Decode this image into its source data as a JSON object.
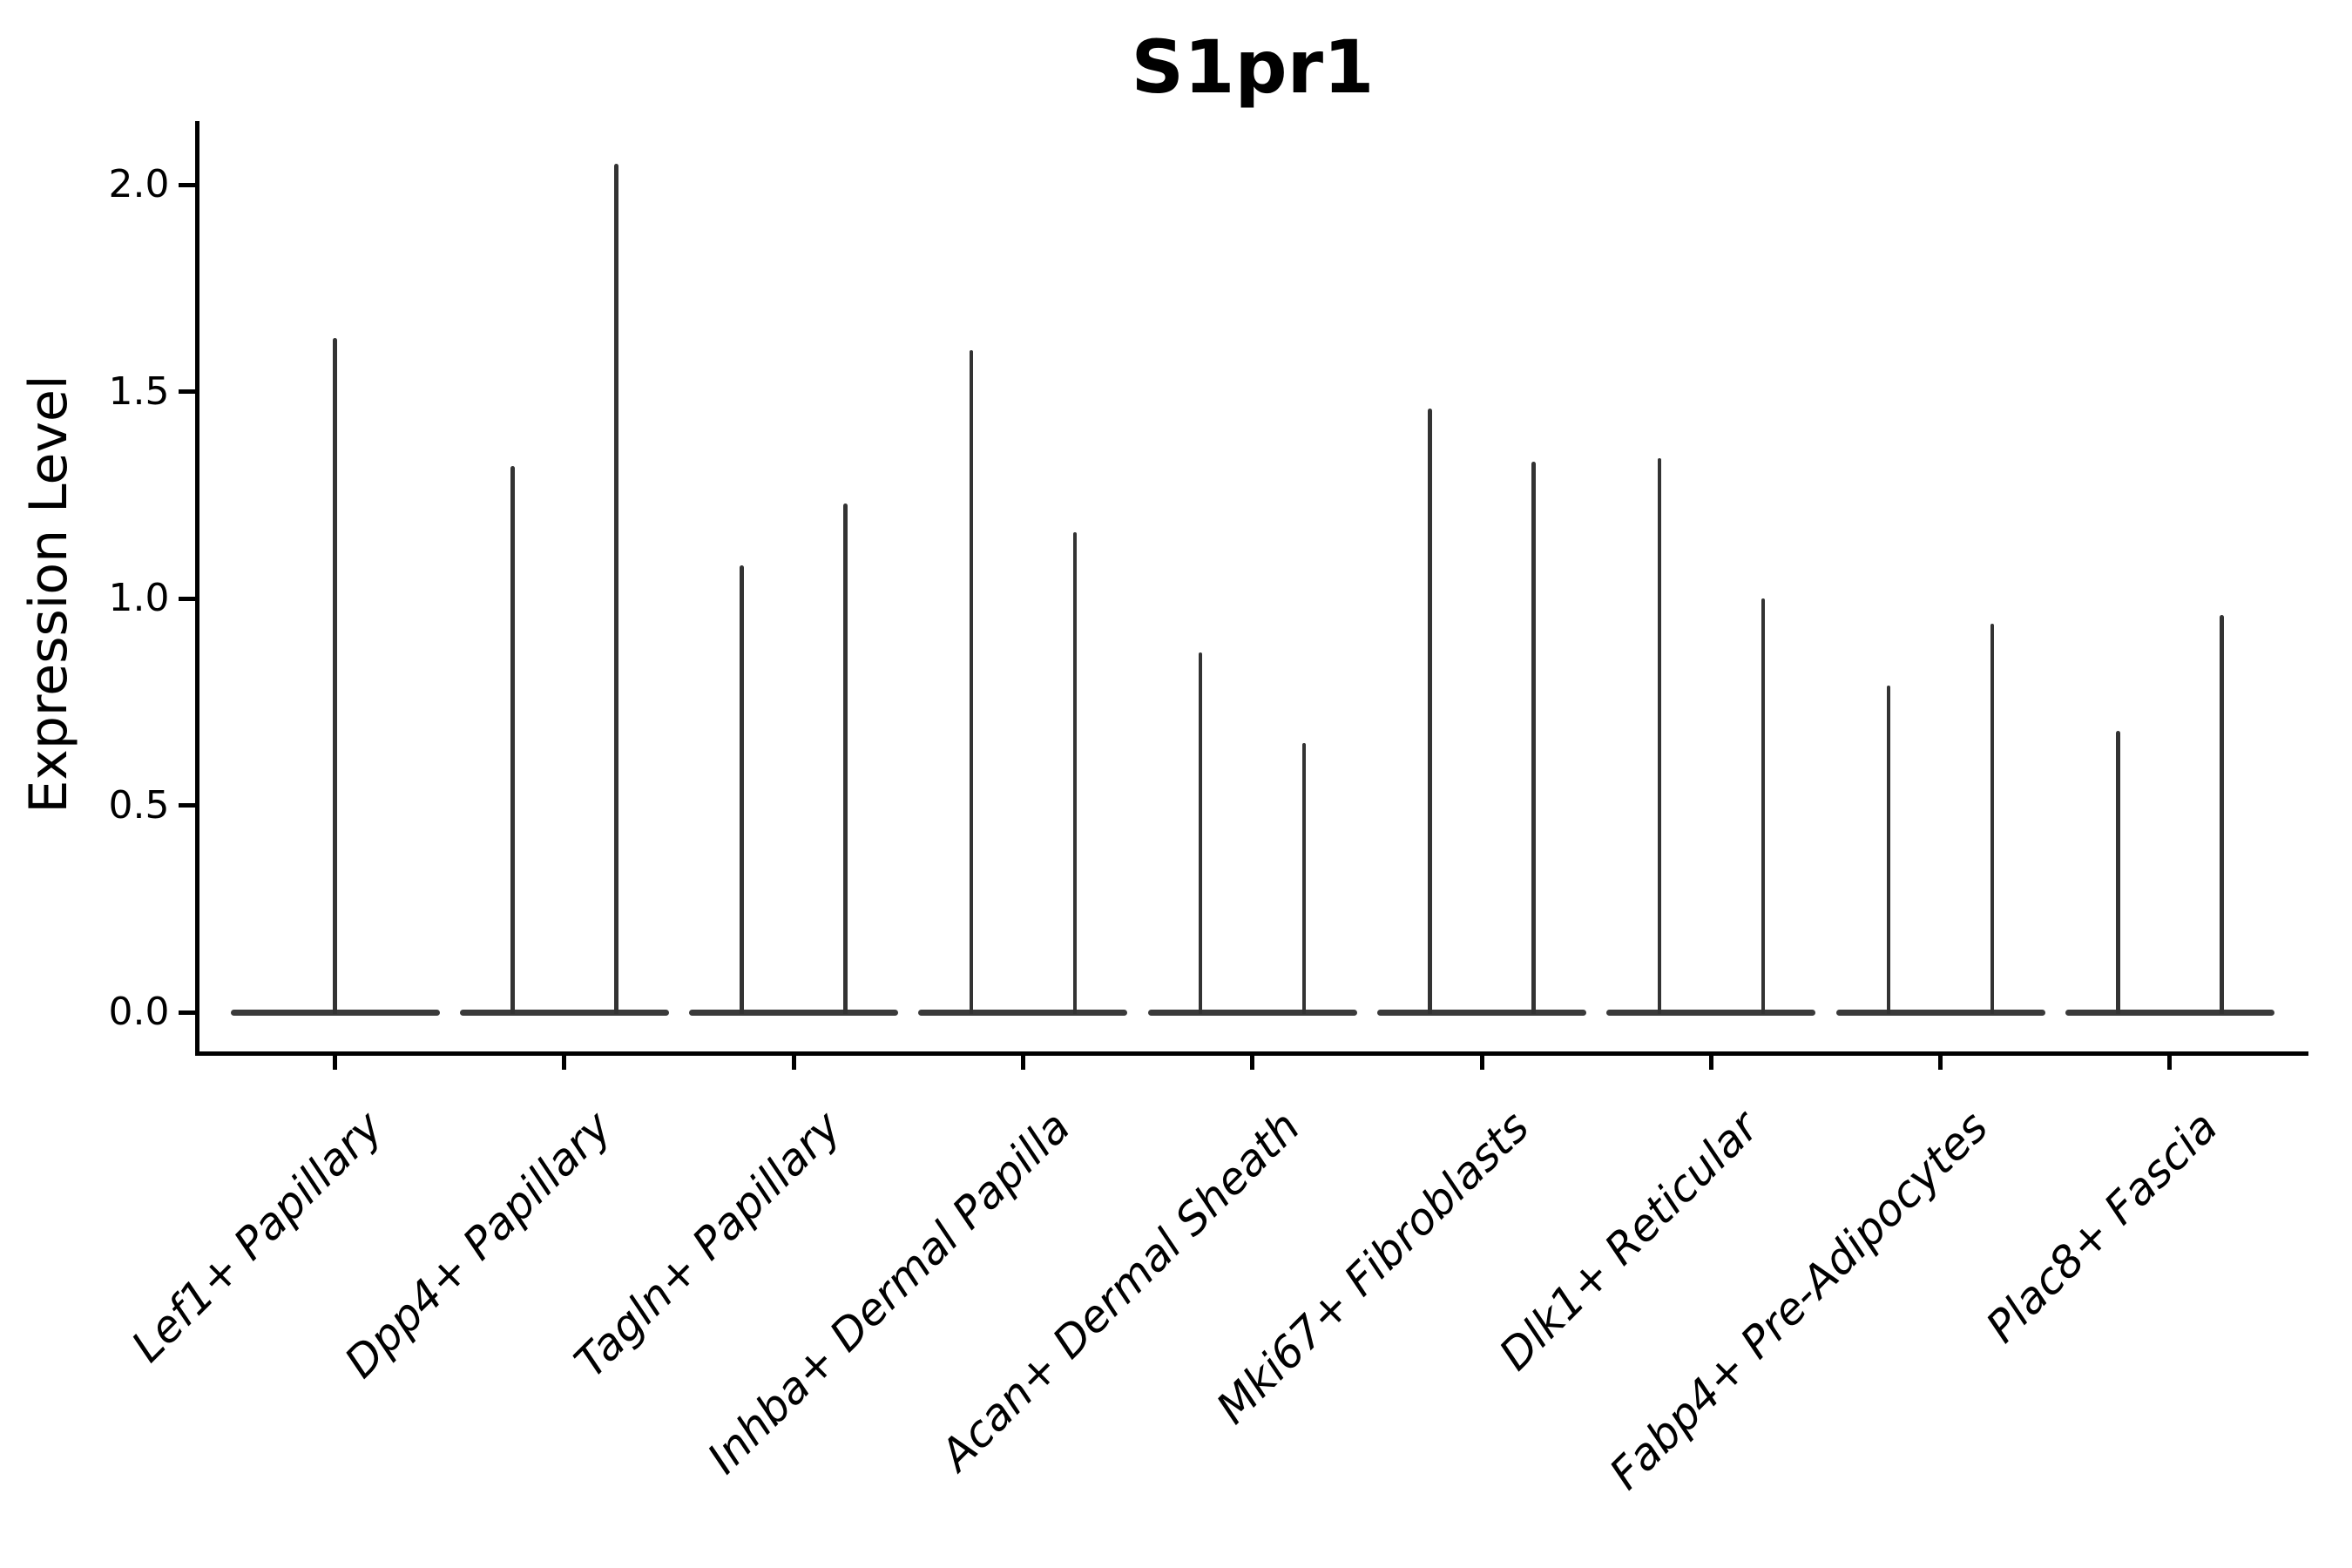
{
  "title": "S1pr1",
  "y_axis": {
    "label": "Expression Level",
    "tick_labels": [
      "0.0",
      "0.5",
      "1.0",
      "1.5",
      "2.0"
    ]
  },
  "x_axis": {
    "label": "",
    "categories": [
      "Lef1+ Papillary",
      "Dpp4+ Papillary",
      "Tagln+ Papillary",
      "Inhba+ Dermal Papilla",
      "Acan+ Dermal Sheath",
      "Mki67+ Fibroblasts",
      "Dlk1+ Reticular",
      "Fabp4+ Pre-Adipocytes",
      "Plac8+ Fascia"
    ]
  },
  "chart_data": {
    "type": "violin",
    "title": "S1pr1",
    "xlabel": "",
    "ylabel": "Expression Level",
    "ylim": [
      -0.1,
      2.12
    ],
    "yticks": [
      0.0,
      0.5,
      1.0,
      1.5,
      2.0
    ],
    "grid": false,
    "legend": "none",
    "style": "flat violin bodies collapsed at 0 expression with thin vertical density spikes reaching the maximum expression value; one centered spike for the first category, two symmetric spikes (left/right sub-violins) for all others",
    "categories": [
      "Lef1+ Papillary",
      "Dpp4+ Papillary",
      "Tagln+ Papillary",
      "Inhba+ Dermal Papilla",
      "Acan+ Dermal Sheath",
      "Mki67+ Fibroblasts",
      "Dlk1+ Reticular",
      "Fabp4+ Pre-Adipocytes",
      "Plac8+ Fascia"
    ],
    "violins": [
      {
        "category": "Lef1+ Papillary",
        "body_value": 0.0,
        "spikes": [
          {
            "pos": "center",
            "max": 1.63
          }
        ]
      },
      {
        "category": "Dpp4+ Papillary",
        "body_value": 0.0,
        "spikes": [
          {
            "pos": "left",
            "max": 1.32
          },
          {
            "pos": "right",
            "max": 2.05
          }
        ]
      },
      {
        "category": "Tagln+ Papillary",
        "body_value": 0.0,
        "spikes": [
          {
            "pos": "left",
            "max": 1.08
          },
          {
            "pos": "right",
            "max": 1.23
          }
        ]
      },
      {
        "category": "Inhba+ Dermal Papilla",
        "body_value": 0.0,
        "spikes": [
          {
            "pos": "left",
            "max": 1.6
          },
          {
            "pos": "right",
            "max": 1.16
          }
        ]
      },
      {
        "category": "Acan+ Dermal Sheath",
        "body_value": 0.0,
        "spikes": [
          {
            "pos": "left",
            "max": 0.87
          },
          {
            "pos": "right",
            "max": 0.65
          }
        ]
      },
      {
        "category": "Mki67+ Fibroblasts",
        "body_value": 0.0,
        "spikes": [
          {
            "pos": "left",
            "max": 1.46
          },
          {
            "pos": "right",
            "max": 1.33
          }
        ]
      },
      {
        "category": "Dlk1+ Reticular",
        "body_value": 0.0,
        "spikes": [
          {
            "pos": "left",
            "max": 1.34
          },
          {
            "pos": "right",
            "max": 1.0
          }
        ]
      },
      {
        "category": "Fabp4+ Pre-Adipocytes",
        "body_value": 0.0,
        "spikes": [
          {
            "pos": "left",
            "max": 0.79
          },
          {
            "pos": "right",
            "max": 0.94
          }
        ]
      },
      {
        "category": "Plac8+ Fascia",
        "body_value": 0.0,
        "spikes": [
          {
            "pos": "left",
            "max": 0.68
          },
          {
            "pos": "right",
            "max": 0.96
          }
        ]
      }
    ]
  },
  "colors": {
    "background": "#ffffff",
    "axis": "#000000",
    "violin": "#3a3a3a",
    "text": "#000000"
  }
}
